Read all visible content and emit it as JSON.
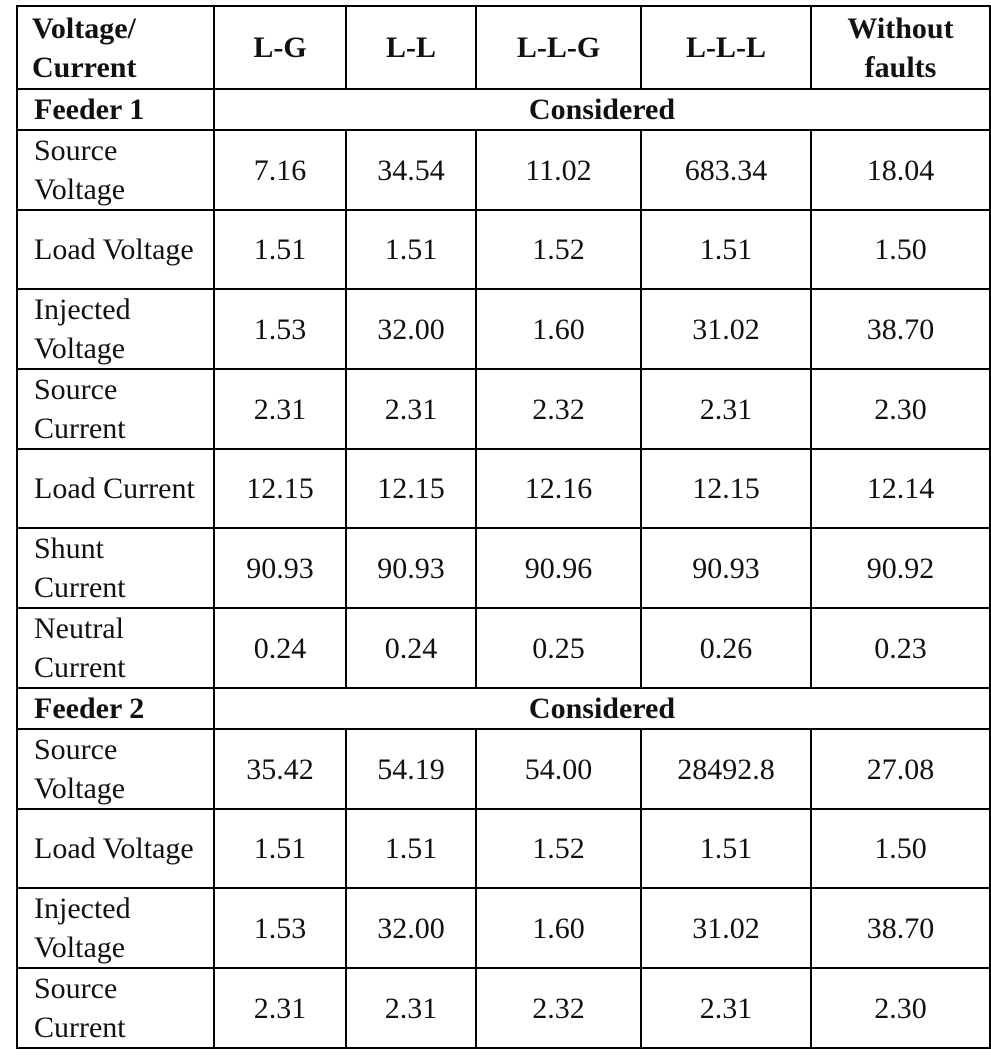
{
  "table": {
    "header": [
      "Voltage/ Current",
      "L-G",
      "L-L",
      "L-L-G",
      "L-L-L",
      "Without faults"
    ],
    "sections": [
      {
        "label": "Feeder 1",
        "note": "Considered",
        "rows": [
          {
            "label": "Source Voltage",
            "values": [
              "7.16",
              "34.54",
              "11.02",
              "683.34",
              "18.04"
            ]
          },
          {
            "label": "Load Voltage",
            "values": [
              "1.51",
              "1.51",
              "1.52",
              "1.51",
              "1.50"
            ]
          },
          {
            "label": "Injected Voltage",
            "values": [
              "1.53",
              "32.00",
              "1.60",
              "31.02",
              "38.70"
            ]
          },
          {
            "label": "Source Current",
            "values": [
              "2.31",
              "2.31",
              "2.32",
              "2.31",
              "2.30"
            ]
          },
          {
            "label": "Load Current",
            "values": [
              "12.15",
              "12.15",
              "12.16",
              "12.15",
              "12.14"
            ]
          },
          {
            "label": "Shunt Current",
            "values": [
              "90.93",
              "90.93",
              "90.96",
              "90.93",
              "90.92"
            ]
          },
          {
            "label": "Neutral Current",
            "values": [
              "0.24",
              "0.24",
              "0.25",
              "0.26",
              "0.23"
            ]
          }
        ]
      },
      {
        "label": "Feeder 2",
        "note": "Considered",
        "rows": [
          {
            "label": "Source Voltage",
            "values": [
              "35.42",
              "54.19",
              "54.00",
              "28492.8",
              "27.08"
            ]
          },
          {
            "label": "Load Voltage",
            "values": [
              "1.51",
              "1.51",
              "1.52",
              "1.51",
              "1.50"
            ]
          },
          {
            "label": "Injected Voltage",
            "values": [
              "1.53",
              "32.00",
              "1.60",
              "31.02",
              "38.70"
            ]
          },
          {
            "label": "Source Current",
            "values": [
              "2.31",
              "2.31",
              "2.32",
              "2.31",
              "2.30"
            ]
          }
        ]
      }
    ]
  }
}
